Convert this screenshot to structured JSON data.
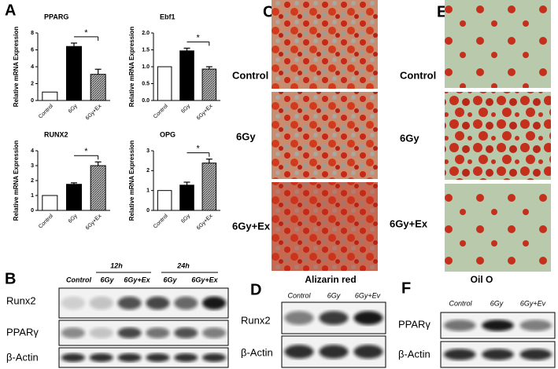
{
  "chart_data": [
    {
      "type": "bar",
      "title": "PPARG",
      "ylabel": "Relative mRNA Expression",
      "categories": [
        "Control",
        "6Gy",
        "6Gy+Ex"
      ],
      "values": [
        1,
        6.4,
        3.1
      ],
      "errors": [
        0,
        0.4,
        0.6
      ],
      "colors": [
        "#ffffff",
        "#000000",
        "#9a9a9a"
      ],
      "hatch": [
        false,
        false,
        true
      ],
      "ylim": [
        0,
        8
      ],
      "yticks": [
        0,
        2,
        4,
        6,
        8
      ],
      "annotation": "*"
    },
    {
      "type": "bar",
      "title": "Ebf1",
      "ylabel": "Relative mRNA Expression",
      "categories": [
        "Control",
        "6Gy",
        "6Gy+Ex"
      ],
      "values": [
        1,
        1.47,
        0.93
      ],
      "errors": [
        0,
        0.08,
        0.07
      ],
      "colors": [
        "#ffffff",
        "#000000",
        "#9a9a9a"
      ],
      "hatch": [
        false,
        false,
        true
      ],
      "ylim": [
        0,
        2
      ],
      "yticks": [
        {
          "value": 0,
          "label": "0.0"
        },
        {
          "value": 0.5,
          "label": "0.5"
        },
        {
          "value": 1,
          "label": "1.0"
        },
        {
          "value": 1.5,
          "label": "1.5"
        },
        {
          "value": 2,
          "label": "2.0"
        }
      ],
      "annotation": "*"
    },
    {
      "type": "bar",
      "title": "RUNX2",
      "ylabel": "Relative mRNA Expression",
      "categories": [
        "Control",
        "6Gy",
        "6Gy+Ex"
      ],
      "values": [
        1,
        1.75,
        3.0
      ],
      "errors": [
        0,
        0.1,
        0.25
      ],
      "colors": [
        "#ffffff",
        "#000000",
        "#9a9a9a"
      ],
      "hatch": [
        false,
        false,
        true
      ],
      "ylim": [
        0,
        4
      ],
      "yticks": [
        0,
        1,
        2,
        3,
        4
      ],
      "annotation": "*"
    },
    {
      "type": "bar",
      "title": "OPG",
      "ylabel": "Relative mRNA Expression",
      "categories": [
        "Control",
        "6Gy",
        "6Gy+Ex"
      ],
      "values": [
        1,
        1.27,
        2.38
      ],
      "errors": [
        0,
        0.15,
        0.2
      ],
      "colors": [
        "#ffffff",
        "#000000",
        "#9a9a9a"
      ],
      "hatch": [
        false,
        false,
        true
      ],
      "ylim": [
        0,
        3
      ],
      "yticks": [
        0,
        1,
        2,
        3
      ],
      "annotation": "*"
    }
  ],
  "panel_letters": [
    "A",
    "B",
    "C",
    "D",
    "E",
    "F"
  ],
  "staining_c": {
    "rows": [
      "Control",
      "6Gy",
      "6Gy+Ex"
    ]
  },
  "staining_e": {
    "rows": [
      "Control",
      "6Gy",
      "6Gy+Ex"
    ]
  },
  "blot_b": {
    "timepoints": [
      "12h",
      "24h"
    ],
    "headers": [
      "Control",
      "6Gy",
      "6Gy+Ex",
      "6Gy",
      "6Gy+Ex"
    ],
    "rows": [
      "Runx2",
      "PPARγ",
      "β-Actin"
    ]
  },
  "blot_d": {
    "title": "Alizarin red",
    "headers": [
      "Control",
      "6Gy",
      "6Gy+Ev"
    ],
    "rows": [
      "Runx2",
      "β-Actin"
    ]
  },
  "blot_f": {
    "title": "Oil O",
    "headers": [
      "Control",
      "6Gy",
      "6Gy+Ev"
    ],
    "rows": [
      "PPARγ",
      "β-Actin"
    ]
  }
}
